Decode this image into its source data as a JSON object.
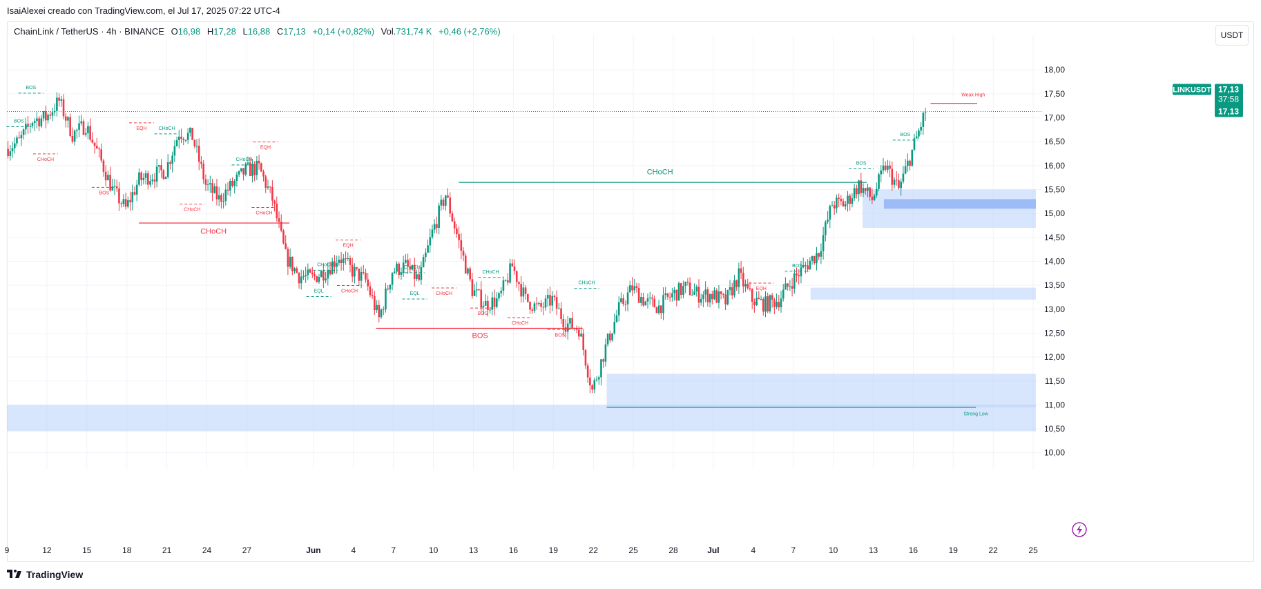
{
  "header": {
    "author_line": "IsaiAlexei creado con TradingView.com, el Jul 17, 2025 07:22 UTC-4"
  },
  "legend": {
    "symbol": "ChainLink / TetherUS · 4h · BINANCE",
    "o_label": "O",
    "o_value": "16,98",
    "h_label": "H",
    "h_value": "17,28",
    "l_label": "L",
    "l_value": "16,88",
    "c_label": "C",
    "c_value": "17,13",
    "change": "+0,14 (+0,82%)",
    "vol_label": "Vol.",
    "vol_value": "731,74 K",
    "vol_change": "+0,46 (+2,76%)"
  },
  "currency_button": "USDT",
  "price_tag": {
    "symbol": "LINKUSDT",
    "price": "17,13",
    "countdown": "37:58",
    "last": "17,13"
  },
  "footer": {
    "brand": "TradingView"
  },
  "colors": {
    "up": "#089981",
    "down": "#f23645",
    "zone": "#bcd3fb",
    "zone_dark": "#8fb2f5",
    "grid": "#f0f3fa"
  },
  "chart_data": {
    "type": "candlestick",
    "y_ticks": [
      "18,00",
      "17,50",
      "17,00",
      "16,50",
      "16,00",
      "15,50",
      "15,00",
      "14,50",
      "14,00",
      "13,50",
      "13,00",
      "12,50",
      "12,00",
      "11,50",
      "11,00",
      "10,50",
      "10,00"
    ],
    "ylim": [
      9.65,
      18.45
    ],
    "x_ticks": [
      {
        "label": "9",
        "day": 0
      },
      {
        "label": "12",
        "day": 3
      },
      {
        "label": "15",
        "day": 6
      },
      {
        "label": "18",
        "day": 9
      },
      {
        "label": "21",
        "day": 12
      },
      {
        "label": "24",
        "day": 15
      },
      {
        "label": "27",
        "day": 18
      },
      {
        "label": "Jun",
        "day": 23
      },
      {
        "label": "4",
        "day": 26
      },
      {
        "label": "7",
        "day": 29
      },
      {
        "label": "10",
        "day": 32
      },
      {
        "label": "13",
        "day": 35
      },
      {
        "label": "16",
        "day": 38
      },
      {
        "label": "19",
        "day": 41
      },
      {
        "label": "22",
        "day": 44
      },
      {
        "label": "25",
        "day": 47
      },
      {
        "label": "28",
        "day": 50
      },
      {
        "label": "Jul",
        "day": 53
      },
      {
        "label": "4",
        "day": 56
      },
      {
        "label": "7",
        "day": 59
      },
      {
        "label": "10",
        "day": 62
      },
      {
        "label": "13",
        "day": 65
      },
      {
        "label": "16",
        "day": 68
      },
      {
        "label": "19",
        "day": 71
      },
      {
        "label": "22",
        "day": 74
      },
      {
        "label": "25",
        "day": 77
      }
    ],
    "price_path": [
      [
        0,
        16.35
      ],
      [
        1,
        16.5
      ],
      [
        2,
        16.95
      ],
      [
        3,
        17.0
      ],
      [
        4,
        17.35
      ],
      [
        5,
        16.65
      ],
      [
        6,
        16.85
      ],
      [
        7,
        16.2
      ],
      [
        8,
        15.5
      ],
      [
        9,
        15.1
      ],
      [
        10,
        15.7
      ],
      [
        11,
        15.8
      ],
      [
        12,
        15.9
      ],
      [
        13,
        16.7
      ],
      [
        14,
        16.6
      ],
      [
        15,
        15.6
      ],
      [
        16,
        15.3
      ],
      [
        17,
        15.6
      ],
      [
        18,
        15.9
      ],
      [
        19,
        15.95
      ],
      [
        20,
        15.3
      ],
      [
        21,
        14.1
      ],
      [
        22,
        13.7
      ],
      [
        23,
        13.65
      ],
      [
        24,
        13.8
      ],
      [
        25,
        14.1
      ],
      [
        26,
        13.8
      ],
      [
        27,
        13.6
      ],
      [
        28,
        12.8
      ],
      [
        29,
        13.8
      ],
      [
        30,
        13.9
      ],
      [
        31,
        13.6
      ],
      [
        32,
        14.6
      ],
      [
        33,
        15.4
      ],
      [
        34,
        14.4
      ],
      [
        35,
        13.4
      ],
      [
        36,
        13.1
      ],
      [
        37,
        13.2
      ],
      [
        38,
        13.9
      ],
      [
        39,
        13.2
      ],
      [
        40,
        13.0
      ],
      [
        41,
        13.2
      ],
      [
        42,
        12.7
      ],
      [
        43,
        12.6
      ],
      [
        44,
        11.3
      ],
      [
        45,
        12.2
      ],
      [
        46,
        13.0
      ],
      [
        47,
        13.45
      ],
      [
        48,
        13.15
      ],
      [
        49,
        13.05
      ],
      [
        50,
        13.3
      ],
      [
        51,
        13.45
      ],
      [
        52,
        13.3
      ],
      [
        53,
        13.3
      ],
      [
        54,
        13.15
      ],
      [
        55,
        13.7
      ],
      [
        56,
        13.2
      ],
      [
        57,
        13.1
      ],
      [
        58,
        13.2
      ],
      [
        59,
        13.6
      ],
      [
        60,
        13.9
      ],
      [
        61,
        14.2
      ],
      [
        62,
        15.2
      ],
      [
        63,
        15.2
      ],
      [
        64,
        15.6
      ],
      [
        65,
        15.3
      ],
      [
        66,
        16.0
      ],
      [
        67,
        15.5
      ],
      [
        68,
        16.3
      ],
      [
        69,
        17.13
      ]
    ],
    "zones": [
      {
        "from_day": -1,
        "to_day": 77.5,
        "top": 11.0,
        "bottom": 10.45
      },
      {
        "from_day": 45,
        "to_day": 77.5,
        "top": 11.65,
        "bottom": 10.95
      },
      {
        "from_day": 60.3,
        "to_day": 77.5,
        "top": 13.45,
        "bottom": 13.2
      },
      {
        "from_day": 64.2,
        "to_day": 77.5,
        "top": 15.5,
        "bottom": 14.7
      },
      {
        "from_day": 65.8,
        "to_day": 77.5,
        "top": 15.3,
        "bottom": 15.1,
        "dark": true
      }
    ],
    "structure_lines": [
      {
        "from_day": 33.9,
        "to_day": 64.5,
        "price": 15.65,
        "color": "up",
        "text": "CHoCH",
        "label_day": 49,
        "label_price": 15.82,
        "size": 11
      },
      {
        "from_day": 9.9,
        "to_day": 21.2,
        "price": 14.8,
        "color": "down",
        "text": "CHoCH",
        "label_day": 15.5,
        "label_price": 14.58,
        "size": 11
      },
      {
        "from_day": 27.7,
        "to_day": 43.2,
        "price": 12.6,
        "color": "down",
        "text": "BOS",
        "label_day": 35.5,
        "label_price": 12.4,
        "size": 11
      },
      {
        "from_day": 45,
        "to_day": 72.7,
        "price": 10.95,
        "color": "up",
        "text": "Strong Low",
        "label_day": 72.7,
        "label_price": 10.78,
        "size": 7
      },
      {
        "from_day": 69.3,
        "to_day": 72.8,
        "price": 17.3,
        "color": "down",
        "text": "Weak High",
        "label_day": 72.5,
        "label_price": 17.45,
        "size": 7
      }
    ],
    "small_labels": [
      {
        "text": "BOS",
        "day": 1.8,
        "price": 17.6,
        "c": "up"
      },
      {
        "text": "BOS",
        "day": 0.9,
        "price": 16.9,
        "c": "up"
      },
      {
        "text": "CHoCH",
        "day": 2.9,
        "price": 16.1,
        "c": "down"
      },
      {
        "text": "BOS",
        "day": 7.3,
        "price": 15.4,
        "c": "down"
      },
      {
        "text": "EQH",
        "day": 10.1,
        "price": 16.75,
        "c": "down"
      },
      {
        "text": "CHoCH",
        "day": 12.0,
        "price": 16.75,
        "c": "up"
      },
      {
        "text": "CHoCH",
        "day": 13.9,
        "price": 15.05,
        "c": "down"
      },
      {
        "text": "CHoCH",
        "day": 17.8,
        "price": 16.1,
        "c": "up"
      },
      {
        "text": "EQH",
        "day": 19.4,
        "price": 16.35,
        "c": "down"
      },
      {
        "text": "CHoCH",
        "day": 19.3,
        "price": 14.98,
        "c": "down"
      },
      {
        "text": "EQH",
        "day": 25.6,
        "price": 14.3,
        "c": "down"
      },
      {
        "text": "CHoCH",
        "day": 23.9,
        "price": 13.9,
        "c": "up"
      },
      {
        "text": "EQL",
        "day": 23.4,
        "price": 13.35,
        "c": "up"
      },
      {
        "text": "CHoCH",
        "day": 25.7,
        "price": 13.35,
        "c": "down"
      },
      {
        "text": "CHoCH",
        "day": 30.4,
        "price": 13.85,
        "c": "up"
      },
      {
        "text": "EQL",
        "day": 30.6,
        "price": 13.3,
        "c": "up"
      },
      {
        "text": "CHoCH",
        "day": 32.8,
        "price": 13.3,
        "c": "down"
      },
      {
        "text": "CHoCH",
        "day": 36.3,
        "price": 13.75,
        "c": "up"
      },
      {
        "text": "BOS",
        "day": 35.7,
        "price": 12.88,
        "c": "down"
      },
      {
        "text": "CHoCH",
        "day": 38.5,
        "price": 12.68,
        "c": "down"
      },
      {
        "text": "BOS",
        "day": 41.5,
        "price": 12.43,
        "c": "down"
      },
      {
        "text": "CHoCH",
        "day": 43.5,
        "price": 13.52,
        "c": "up"
      },
      {
        "text": "EQH",
        "day": 56.6,
        "price": 13.4,
        "c": "down"
      },
      {
        "text": "BOS",
        "day": 59.3,
        "price": 13.88,
        "c": "up"
      },
      {
        "text": "BOS",
        "day": 64.1,
        "price": 16.02,
        "c": "up"
      },
      {
        "text": "BOS",
        "day": 67.4,
        "price": 16.62,
        "c": "up"
      }
    ],
    "last_price": 17.13
  }
}
